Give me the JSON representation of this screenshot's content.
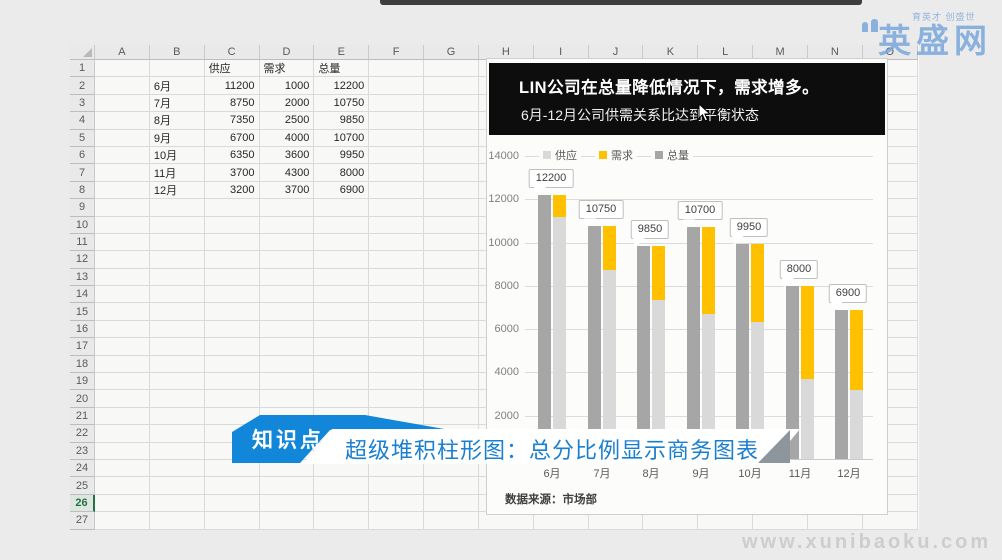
{
  "sheet": {
    "columns": [
      "A",
      "B",
      "C",
      "D",
      "E",
      "F",
      "G",
      "H",
      "I",
      "J",
      "K",
      "L",
      "M",
      "N",
      "O"
    ],
    "row_count": 27,
    "active_row": 26,
    "cells": {
      "C1": "供应",
      "D1": "需求",
      "E1": "总量",
      "B2": "6月",
      "C2": "11200",
      "D2": "1000",
      "E2": "12200",
      "B3": "7月",
      "C3": "8750",
      "D3": "2000",
      "E3": "10750",
      "B4": "8月",
      "C4": "7350",
      "D4": "2500",
      "E4": "9850",
      "B5": "9月",
      "C5": "6700",
      "D5": "4000",
      "E5": "10700",
      "B6": "10月",
      "C6": "6350",
      "D6": "3600",
      "E6": "9950",
      "B7": "11月",
      "C7": "3700",
      "D7": "4300",
      "E7": "8000",
      "B8": "12月",
      "C8": "3200",
      "D8": "3700",
      "E8": "6900"
    }
  },
  "chart": {
    "title": "LIN公司在总量降低情况下，需求增多。",
    "subtitle": "6月-12月公司供需关系比达到平衡状态",
    "source": "数据来源：市场部"
  },
  "chart_data": {
    "type": "bar",
    "subtype": "total-column-plus-stacked-column",
    "categories": [
      "6月",
      "7月",
      "8月",
      "9月",
      "10月",
      "11月",
      "12月"
    ],
    "series": [
      {
        "name": "供应",
        "values": [
          11200,
          8750,
          7350,
          6700,
          6350,
          3700,
          3200
        ],
        "color": "#d9d9d9"
      },
      {
        "name": "需求",
        "values": [
          1000,
          2000,
          2500,
          4000,
          3600,
          4300,
          3700
        ],
        "color": "#ffc000"
      },
      {
        "name": "总量",
        "values": [
          12200,
          10750,
          9850,
          10700,
          9950,
          8000,
          6900
        ],
        "color": "#a6a6a6"
      }
    ],
    "data_labels": [
      "12200",
      "10750",
      "9850",
      "10700",
      "9950",
      "8000",
      "6900"
    ],
    "title": "LIN公司在总量降低情况下，需求增多。",
    "subtitle": "6月-12月公司供需关系比达到平衡状态",
    "ylim": [
      0,
      14000
    ],
    "ytick_step": 2000,
    "grid": true,
    "legend_position": "top"
  },
  "banner": {
    "badge": "知识点",
    "text": "超级堆积柱形图：总分比例显示商务图表"
  },
  "watermarks": {
    "logo_tagline": "育英才 创盛世",
    "logo_text": "英盛网",
    "site": "www.xunibaoku.com"
  },
  "colors": {
    "accent_blue": "#1287d9",
    "banner_text_blue": "#1a7fd0",
    "bar_supply": "#d9d9d9",
    "bar_demand": "#ffc000",
    "bar_total": "#a6a6a6",
    "title_bg": "#0d0d0d",
    "active_row_green": "#217346"
  }
}
